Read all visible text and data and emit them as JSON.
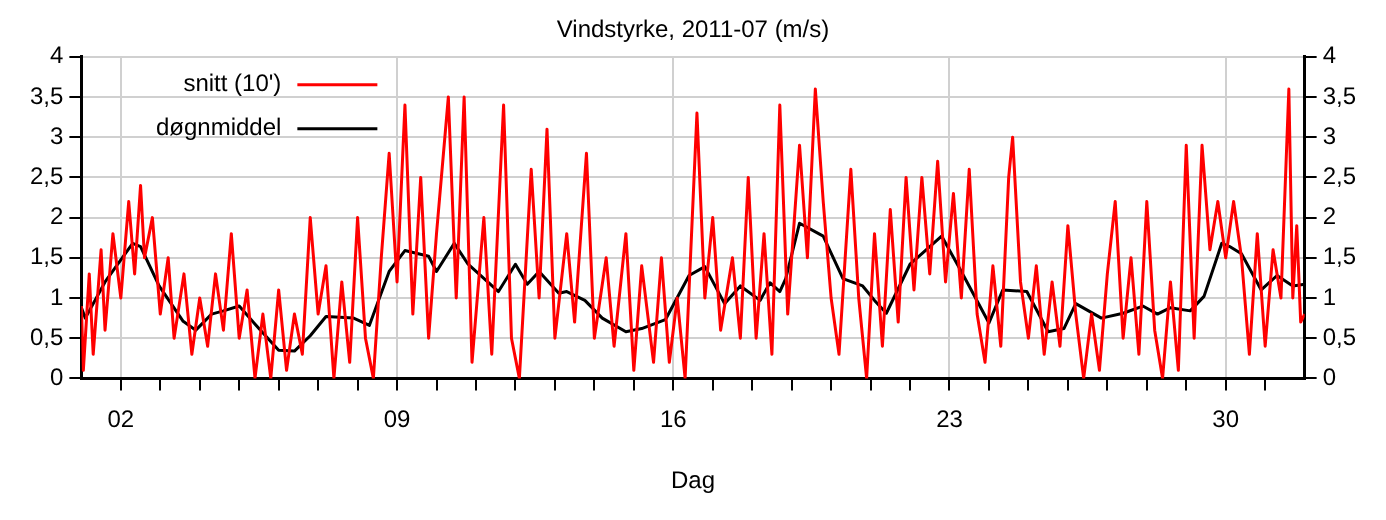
{
  "chart_data": {
    "type": "line",
    "title": "Vindstyrke, 2011-07 (m/s)",
    "xlabel": "Dag",
    "xlim": [
      1,
      32
    ],
    "xticks": [
      {
        "value": 2,
        "label": "02"
      },
      {
        "value": 3,
        "label": null
      },
      {
        "value": 4,
        "label": null
      },
      {
        "value": 5,
        "label": null
      },
      {
        "value": 6,
        "label": null
      },
      {
        "value": 7,
        "label": null
      },
      {
        "value": 8,
        "label": null
      },
      {
        "value": 9,
        "label": "09"
      },
      {
        "value": 10,
        "label": null
      },
      {
        "value": 11,
        "label": null
      },
      {
        "value": 12,
        "label": null
      },
      {
        "value": 13,
        "label": null
      },
      {
        "value": 14,
        "label": null
      },
      {
        "value": 15,
        "label": null
      },
      {
        "value": 16,
        "label": "16"
      },
      {
        "value": 17,
        "label": null
      },
      {
        "value": 18,
        "label": null
      },
      {
        "value": 19,
        "label": null
      },
      {
        "value": 20,
        "label": null
      },
      {
        "value": 21,
        "label": null
      },
      {
        "value": 22,
        "label": null
      },
      {
        "value": 23,
        "label": "23"
      },
      {
        "value": 24,
        "label": null
      },
      {
        "value": 25,
        "label": null
      },
      {
        "value": 26,
        "label": null
      },
      {
        "value": 27,
        "label": null
      },
      {
        "value": 28,
        "label": null
      },
      {
        "value": 29,
        "label": null
      },
      {
        "value": 30,
        "label": "30"
      },
      {
        "value": 31,
        "label": null
      }
    ],
    "ylim": [
      0,
      4
    ],
    "yticks": [
      0,
      {
        "value": 0.5,
        "label": "0,5"
      },
      1,
      {
        "value": 1.5,
        "label": "1,5"
      },
      2,
      {
        "value": 2.5,
        "label": "2,5"
      },
      3,
      {
        "value": 3.5,
        "label": "3,5"
      },
      4
    ],
    "y2lim": [
      0,
      4
    ],
    "y2ticks": [
      0,
      {
        "value": 0.5,
        "label": "0,5"
      },
      1,
      {
        "value": 1.5,
        "label": "1,5"
      },
      2,
      {
        "value": 2.5,
        "label": "2,5"
      },
      3,
      {
        "value": 3.5,
        "label": "3,5"
      },
      4
    ],
    "grid": true,
    "legend": "top left",
    "marker": "none",
    "line_style": "solid",
    "series": [
      {
        "name": "snitt (10')",
        "color": "#ff0000",
        "x": [
          1.0,
          1.05,
          1.2,
          1.3,
          1.5,
          1.6,
          1.8,
          2.0,
          2.2,
          2.35,
          2.5,
          2.6,
          2.8,
          3.0,
          3.2,
          3.35,
          3.6,
          3.8,
          4.0,
          4.2,
          4.4,
          4.6,
          4.8,
          5.0,
          5.2,
          5.4,
          5.6,
          5.8,
          6.0,
          6.2,
          6.4,
          6.6,
          6.8,
          7.0,
          7.2,
          7.4,
          7.6,
          7.8,
          8.0,
          8.2,
          8.4,
          8.6,
          8.8,
          9.0,
          9.2,
          9.4,
          9.6,
          9.8,
          10.0,
          10.3,
          10.5,
          10.7,
          10.9,
          11.2,
          11.4,
          11.7,
          11.9,
          12.1,
          12.4,
          12.6,
          12.8,
          13.0,
          13.3,
          13.5,
          13.8,
          14.0,
          14.3,
          14.5,
          14.8,
          15.0,
          15.2,
          15.5,
          15.7,
          15.9,
          16.1,
          16.3,
          16.6,
          16.8,
          17.0,
          17.2,
          17.5,
          17.7,
          17.9,
          18.1,
          18.3,
          18.5,
          18.7,
          18.9,
          19.2,
          19.4,
          19.6,
          19.8,
          20.0,
          20.2,
          20.5,
          20.7,
          20.9,
          21.1,
          21.3,
          21.5,
          21.7,
          21.9,
          22.1,
          22.3,
          22.5,
          22.7,
          22.9,
          23.1,
          23.3,
          23.5,
          23.7,
          23.9,
          24.1,
          24.3,
          24.5,
          24.6,
          24.8,
          25.0,
          25.2,
          25.4,
          25.6,
          25.8,
          26.0,
          26.2,
          26.4,
          26.6,
          26.8,
          27.0,
          27.2,
          27.4,
          27.6,
          27.8,
          28.0,
          28.2,
          28.4,
          28.6,
          28.8,
          29.0,
          29.2,
          29.4,
          29.6,
          29.8,
          30.0,
          30.2,
          30.4,
          30.6,
          30.8,
          31.0,
          31.2,
          31.4,
          31.6,
          31.7,
          31.8,
          31.9,
          32.0
        ],
        "values": [
          0.9,
          0.1,
          1.3,
          0.3,
          1.6,
          0.6,
          1.8,
          1.0,
          2.2,
          1.3,
          2.4,
          1.5,
          2.0,
          0.8,
          1.5,
          0.5,
          1.3,
          0.3,
          1.0,
          0.4,
          1.3,
          0.6,
          1.8,
          0.5,
          1.1,
          0.0,
          0.8,
          0.0,
          1.1,
          0.1,
          0.8,
          0.3,
          2.0,
          0.8,
          1.4,
          0.0,
          1.2,
          0.2,
          2.0,
          0.5,
          0.0,
          1.5,
          2.8,
          1.2,
          3.4,
          0.8,
          2.5,
          0.5,
          1.8,
          3.5,
          1.0,
          3.5,
          0.2,
          2.0,
          0.3,
          3.4,
          0.5,
          0.0,
          2.6,
          1.0,
          3.1,
          0.5,
          1.8,
          0.7,
          2.8,
          0.5,
          1.5,
          0.4,
          1.8,
          0.1,
          1.4,
          0.2,
          1.5,
          0.2,
          1.0,
          0.0,
          3.3,
          1.0,
          2.0,
          0.6,
          1.5,
          0.5,
          2.5,
          0.5,
          1.8,
          0.3,
          3.4,
          0.8,
          2.9,
          1.5,
          3.6,
          2.2,
          1.0,
          0.3,
          2.6,
          1.0,
          0.0,
          1.8,
          0.4,
          2.1,
          0.7,
          2.5,
          1.1,
          2.5,
          1.3,
          2.7,
          1.2,
          2.3,
          1.0,
          2.6,
          0.8,
          0.2,
          1.4,
          0.4,
          2.5,
          3.0,
          1.2,
          0.5,
          1.4,
          0.3,
          1.2,
          0.4,
          1.9,
          0.8,
          0.0,
          0.8,
          0.1,
          1.3,
          2.2,
          0.5,
          1.5,
          0.3,
          2.2,
          0.6,
          0.0,
          1.2,
          0.1,
          2.9,
          0.5,
          2.9,
          1.6,
          2.2,
          1.5,
          2.2,
          1.5,
          0.3,
          1.8,
          0.4,
          1.6,
          1.0,
          3.6,
          1.0,
          1.9,
          0.7,
          0.8
        ]
      },
      {
        "name": "døgnmiddel",
        "color": "#000000",
        "x": [
          1.0,
          1.1,
          1.6,
          2.3,
          2.5,
          2.97,
          3.58,
          3.9,
          4.3,
          4.6,
          5.0,
          5.5,
          6.0,
          6.4,
          6.8,
          7.2,
          7.9,
          8.3,
          8.8,
          9.2,
          9.8,
          10.0,
          10.45,
          10.8,
          11.57,
          12.0,
          12.3,
          12.6,
          13.1,
          13.3,
          13.76,
          14.2,
          14.8,
          15.2,
          15.8,
          16.4,
          16.8,
          17.3,
          17.7,
          18.2,
          18.45,
          18.7,
          18.85,
          19.2,
          19.8,
          20.3,
          20.8,
          21.1,
          21.4,
          22.0,
          22.8,
          23.3,
          24.0,
          24.35,
          24.96,
          25.5,
          25.9,
          26.2,
          26.85,
          27.4,
          27.9,
          28.27,
          28.6,
          29.1,
          29.45,
          29.9,
          30.1,
          30.4,
          30.9,
          31.3,
          31.7,
          32.0
        ],
        "values": [
          0.88,
          0.75,
          1.2,
          1.68,
          1.64,
          1.15,
          0.71,
          0.6,
          0.8,
          0.84,
          0.9,
          0.62,
          0.35,
          0.34,
          0.53,
          0.77,
          0.75,
          0.66,
          1.33,
          1.59,
          1.52,
          1.33,
          1.68,
          1.42,
          1.08,
          1.42,
          1.17,
          1.33,
          1.06,
          1.08,
          0.97,
          0.75,
          0.58,
          0.62,
          0.73,
          1.28,
          1.39,
          0.93,
          1.15,
          0.97,
          1.19,
          1.08,
          1.24,
          1.93,
          1.77,
          1.24,
          1.15,
          0.97,
          0.81,
          1.42,
          1.77,
          1.33,
          0.69,
          1.1,
          1.08,
          0.58,
          0.62,
          0.93,
          0.75,
          0.81,
          0.9,
          0.8,
          0.88,
          0.84,
          1.02,
          1.68,
          1.64,
          1.55,
          1.1,
          1.28,
          1.15,
          1.17
        ]
      }
    ]
  }
}
